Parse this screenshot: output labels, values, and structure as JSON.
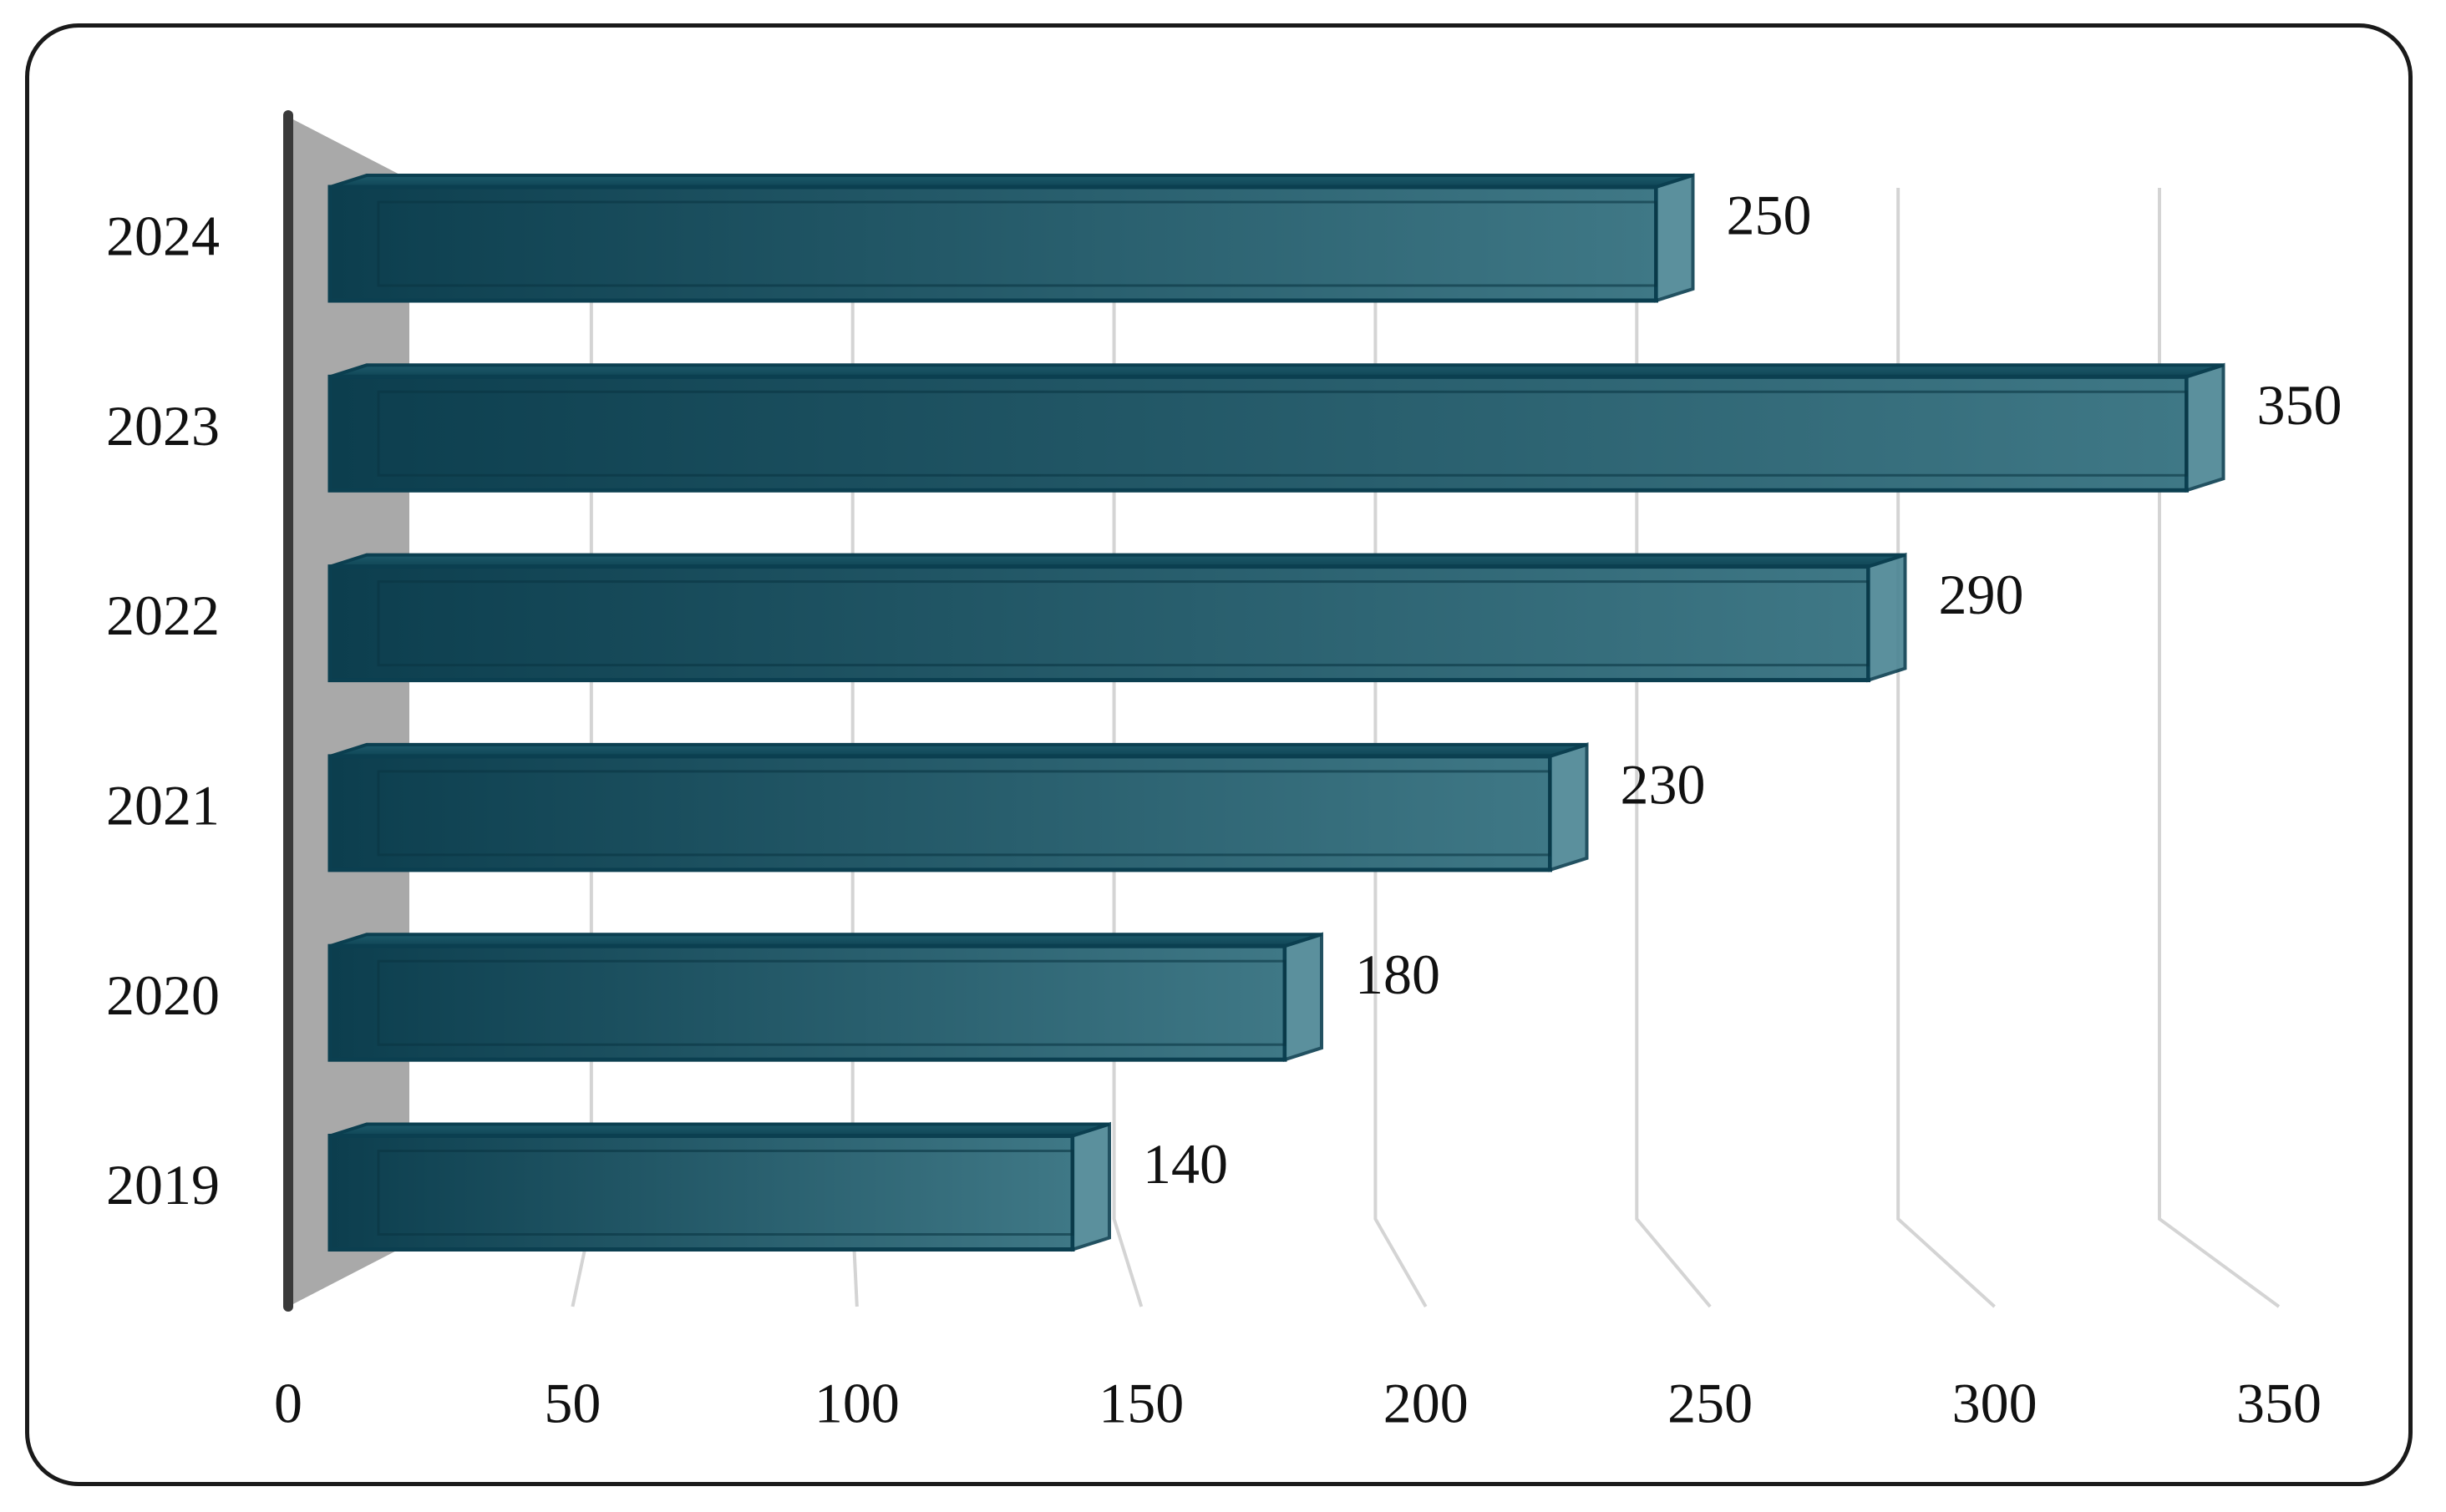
{
  "chart_data": {
    "type": "bar",
    "orientation": "horizontal",
    "style": "3d",
    "categories": [
      "2019",
      "2020",
      "2021",
      "2022",
      "2023",
      "2024"
    ],
    "values": [
      140,
      180,
      230,
      290,
      350,
      250
    ],
    "title": "",
    "xlabel": "",
    "ylabel": "",
    "xlim": [
      0,
      350
    ],
    "xticks": [
      "0",
      "50",
      "100",
      "150",
      "200",
      "250",
      "300",
      "350"
    ],
    "data_labels": true,
    "grid": true,
    "legend": "none",
    "colors": {
      "bar": "#0e4a5c",
      "bar_light": "#4a8593",
      "bar_edge": "#0b3f50",
      "wall": "#a9a9a9",
      "axis": "#3a3a3a",
      "grid": "#d4d4d4"
    }
  }
}
